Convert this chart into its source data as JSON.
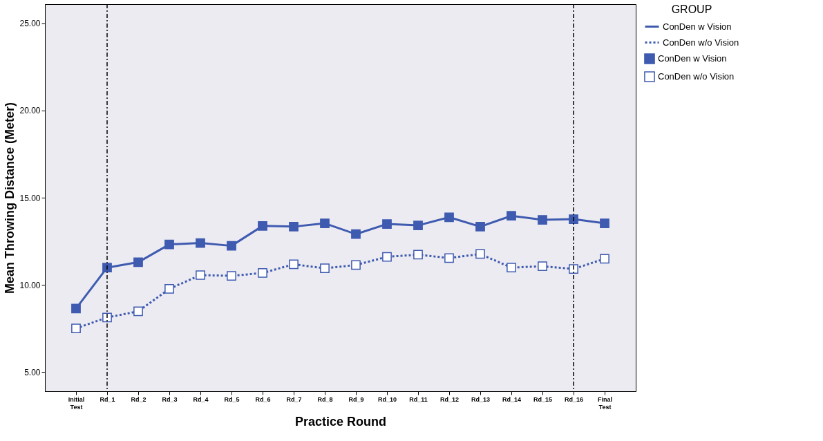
{
  "chart_data": {
    "type": "line",
    "xlabel": "Practice Round",
    "ylabel": "Mean Throwing Distance (Meter)",
    "legend_title": "GROUP",
    "legend": "right",
    "marker": "square",
    "categories": [
      "Initial Test",
      "Rd_1",
      "Rd_2",
      "Rd_3",
      "Rd_4",
      "Rd_5",
      "Rd_6",
      "Rd_7",
      "Rd_8",
      "Rd_9",
      "Rd_10",
      "Rd_11",
      "Rd_12",
      "Rd_13",
      "Rd_14",
      "Rd_15",
      "Rd_16",
      "Final Test"
    ],
    "ylim": [
      3.9,
      26.1
    ],
    "yticks": [
      {
        "value": 5,
        "label": "5.00"
      },
      {
        "value": 10,
        "label": "10.00"
      },
      {
        "value": 15,
        "label": "15.00"
      },
      {
        "value": 20,
        "label": "20.00"
      },
      {
        "value": 25,
        "label": "25.00"
      }
    ],
    "grid": false,
    "series": [
      {
        "name": "ConDen w Vision",
        "color": "#3f5bb0",
        "line_style": "solid",
        "values": [
          8.64,
          10.99,
          11.3,
          12.32,
          12.4,
          12.24,
          13.38,
          13.34,
          13.53,
          12.91,
          13.49,
          13.41,
          13.88,
          13.34,
          13.96,
          13.73,
          13.77,
          13.53
        ]
      },
      {
        "name": "ConDen w/o Vision",
        "color": "#3f5bb0",
        "line_style": "dotted",
        "values": [
          7.5,
          8.13,
          8.48,
          9.77,
          10.56,
          10.52,
          10.68,
          11.18,
          10.95,
          11.14,
          11.61,
          11.73,
          11.54,
          11.77,
          10.99,
          11.07,
          10.91,
          11.5
        ]
      }
    ],
    "ref_lines": [
      {
        "axis": "x",
        "value": "Rd_1",
        "line_style": "dashed",
        "color": "#000000"
      },
      {
        "axis": "x",
        "value": "Rd_16",
        "line_style": "dashed",
        "color": "#000000"
      }
    ]
  }
}
